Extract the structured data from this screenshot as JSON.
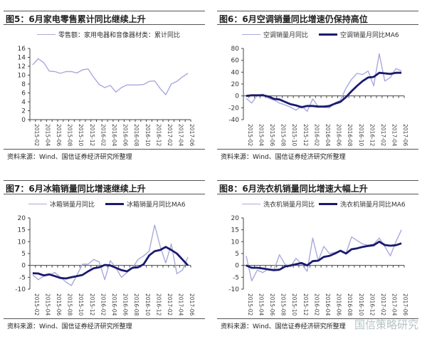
{
  "x_ticks": [
    "2015-02",
    "2015-04",
    "2015-06",
    "2015-08",
    "2015-10",
    "2015-12",
    "2016-02",
    "2016-04",
    "2016-06",
    "2016-08",
    "2016-10",
    "2016-12",
    "2017-02",
    "2017-04",
    "2017-06"
  ],
  "colors": {
    "raw": "#a9a9dc",
    "ma6": "#1a1a6e",
    "axis": "#444444"
  },
  "watermark": "国信策略研究",
  "chart_data": [
    {
      "id": "fig5",
      "type": "line",
      "title": "图5：6月家电零售累计同比继续上升",
      "source": "资料来源：Wind、国信证券经济研究所整理",
      "ylim": [
        0,
        16
      ],
      "yticks": [
        0,
        2,
        4,
        6,
        8,
        10,
        12,
        14,
        16
      ],
      "x_range": [
        "2015-02",
        "2017-06"
      ],
      "series": [
        {
          "name": "零售额：家用电器和音像器材类：累计同比",
          "style": "raw",
          "values": [
            12.3,
            13.7,
            12.8,
            10.9,
            10.8,
            10.4,
            10.8,
            10.8,
            10.5,
            11.2,
            11.4,
            9.5,
            7.9,
            7.2,
            7.7,
            6.2,
            7.2,
            7.8,
            7.8,
            7.8,
            7.9,
            8.6,
            8.7,
            7.0,
            5.6,
            8.0,
            8.6,
            9.6,
            10.4
          ]
        }
      ]
    },
    {
      "id": "fig6",
      "type": "line",
      "title": "图6：6月空调销量同比增速仍保持高位",
      "source": "资料来源：Wind、国信证券经济研究所整理",
      "ylim": [
        -40,
        80
      ],
      "yticks": [
        -40,
        -20,
        0,
        20,
        40,
        60,
        80
      ],
      "x_range": [
        "2015-02",
        "2017-06"
      ],
      "series": [
        {
          "name": "空调销量月同比",
          "style": "raw",
          "values": [
            -4,
            -12,
            1,
            3,
            -4,
            -7,
            -12,
            -15,
            -19,
            -24,
            -17,
            -26,
            -5,
            -18,
            -19,
            -20,
            -12,
            -7,
            13,
            28,
            38,
            36,
            42,
            17,
            71,
            25,
            31,
            46,
            42
          ]
        },
        {
          "name": "空调销量月同比MA6",
          "style": "ma6",
          "values": [
            0,
            1,
            1,
            1,
            -1,
            -5,
            -6,
            -10,
            -14,
            -16,
            -19,
            -17,
            -17,
            -18,
            -18,
            -17,
            -13,
            -10,
            -2,
            8,
            17,
            25,
            31,
            32,
            39,
            38,
            37,
            39,
            39
          ]
        }
      ]
    },
    {
      "id": "fig7",
      "type": "line",
      "title": "图7：6月冰箱销量同比增速继续上升",
      "source": "资料来源：Wind、国信证券经济研究所整理",
      "ylim": [
        -10,
        20
      ],
      "yticks": [
        -10,
        -5,
        0,
        5,
        10,
        15,
        20
      ],
      "x_range": [
        "2015-02",
        "2017-06"
      ],
      "series": [
        {
          "name": "冰箱销量月同比",
          "style": "raw",
          "values": [
            -4,
            -6,
            -4.5,
            -4,
            -3,
            -5,
            -7,
            -8.5,
            -4,
            0.5,
            0.5,
            2.5,
            1.5,
            -6,
            2,
            -1,
            -5,
            -3,
            -1,
            2.5,
            4,
            6,
            17,
            8,
            1,
            9,
            -3.5,
            -2,
            3.5
          ]
        },
        {
          "name": "冰箱销量月同比MA6",
          "style": "ma6",
          "values": [
            -3.3,
            -3.4,
            -4.2,
            -3.8,
            -4.5,
            -5.3,
            -5.5,
            -5,
            -4.5,
            -4,
            -2.5,
            -1.2,
            -0.8,
            0.2,
            0,
            -1,
            -2,
            -2.5,
            -1,
            -0.8,
            0.5,
            4.2,
            6,
            6.5,
            7.8,
            6.5,
            5,
            2.5,
            0
          ]
        }
      ]
    },
    {
      "id": "fig8",
      "type": "line",
      "title": "图8：6月洗衣机销量同比增速大幅上升",
      "source": "资料来源：Wind、国信证券经济研究所整理",
      "ylim": [
        -10,
        20
      ],
      "yticks": [
        -10,
        -5,
        0,
        5,
        10,
        15,
        20
      ],
      "x_range": [
        "2015-02",
        "2017-06"
      ],
      "series": [
        {
          "name": "洗衣机销量月同比",
          "style": "raw",
          "values": [
            4,
            -6.5,
            -2,
            -3,
            -1.5,
            -2,
            4.5,
            0.5,
            -0.5,
            3,
            0.5,
            -2.5,
            11.5,
            2,
            8,
            5,
            5.5,
            6,
            5,
            12,
            10.5,
            9,
            8.5,
            9,
            11.5,
            8,
            4,
            10,
            15
          ]
        },
        {
          "name": "洗衣机销量月同比MA6",
          "style": "ma6",
          "values": [
            0,
            -1,
            -1,
            -1.3,
            -1.7,
            -2,
            -1.8,
            -0.5,
            0,
            0.5,
            1,
            0,
            1.8,
            2,
            3.6,
            4,
            5,
            6.2,
            5,
            6.8,
            7.2,
            7.8,
            8.2,
            8.5,
            10,
            8.6,
            8.3,
            8.5,
            9.3
          ]
        }
      ]
    }
  ]
}
